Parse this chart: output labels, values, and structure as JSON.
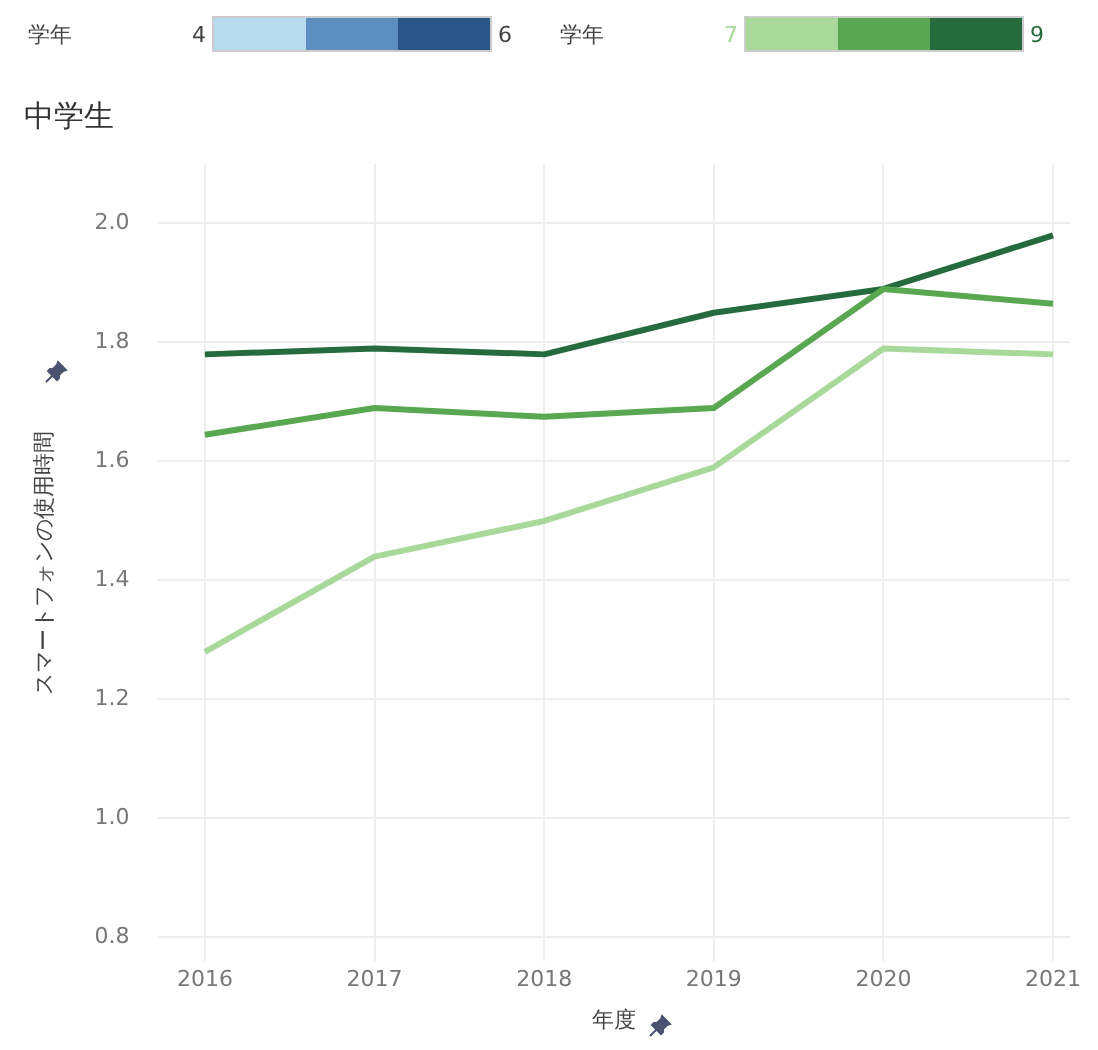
{
  "chart_data": {
    "type": "line",
    "title": "中学生",
    "xlabel": "年度",
    "ylabel": "スマートフォンの使用時間",
    "legend_title": "学年",
    "legend": "top",
    "annotations": [
      "学年",
      "4",
      "6"
    ],
    "x": [
      2016,
      2017,
      2018,
      2019,
      2020,
      2021
    ],
    "series": [
      {
        "name": "7",
        "color": "#a8d99a",
        "values": [
          1.28,
          1.44,
          1.5,
          1.59,
          1.79,
          1.78
        ]
      },
      {
        "color": "#5aa752",
        "values": [
          1.645,
          1.69,
          1.675,
          1.69,
          1.89,
          1.865
        ]
      },
      {
        "name": "9",
        "color": "#266b3e",
        "values": [
          1.78,
          1.79,
          1.78,
          1.85,
          1.89,
          1.98
        ]
      }
    ],
    "xlim": [
      2015.72,
      2021.1
    ],
    "xticks": [
      2016,
      2017,
      2018,
      2019,
      2020,
      2021
    ],
    "ylim": [
      0.76,
      2.1
    ],
    "yticks": [
      0.8,
      {
        "value": 1,
        "label": "1.0"
      },
      1.2,
      1.4,
      1.6,
      1.8,
      {
        "value": 2,
        "label": "2.0"
      }
    ],
    "grid": true,
    "marker": "none",
    "line_style": "solid"
  }
}
